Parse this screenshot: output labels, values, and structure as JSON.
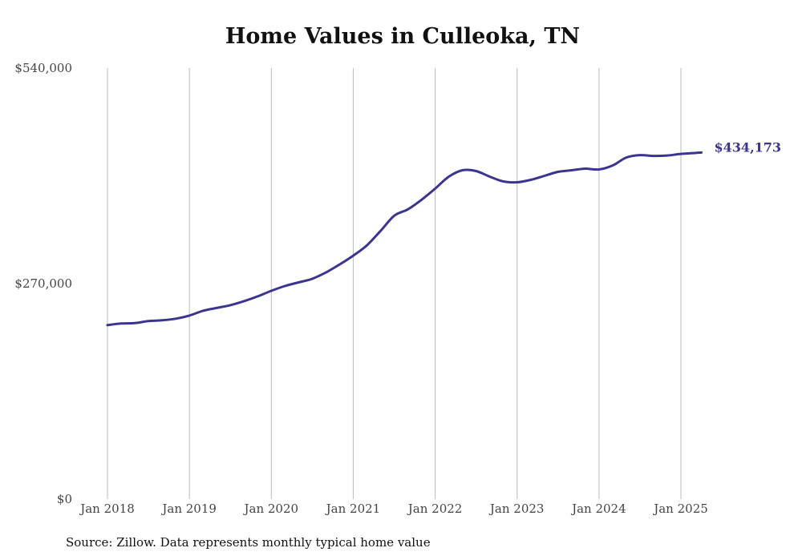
{
  "title": "Home Values in Culleoka, TN",
  "source": "Source: Zillow. Data represents monthly typical home value",
  "colors": {
    "line": "#3b3590",
    "grid": "#bbbbbb",
    "text": "#444444"
  },
  "chart_data": {
    "type": "line",
    "title": "Home Values in Culleoka, TN",
    "xlabel": "",
    "ylabel": "",
    "ylim": [
      0,
      540000
    ],
    "yticks": [
      {
        "value": 0,
        "label": "$0"
      },
      {
        "value": 270000,
        "label": "$270,000"
      },
      {
        "value": 540000,
        "label": "$540,000"
      }
    ],
    "xlim": [
      "2018-01",
      "2025-04"
    ],
    "xticks": [
      {
        "date": "2018-01",
        "label": "Jan 2018"
      },
      {
        "date": "2019-01",
        "label": "Jan 2019"
      },
      {
        "date": "2020-01",
        "label": "Jan 2020"
      },
      {
        "date": "2021-01",
        "label": "Jan 2021"
      },
      {
        "date": "2022-01",
        "label": "Jan 2022"
      },
      {
        "date": "2023-01",
        "label": "Jan 2023"
      },
      {
        "date": "2024-01",
        "label": "Jan 2024"
      },
      {
        "date": "2025-01",
        "label": "Jan 2025"
      }
    ],
    "grid": "vertical",
    "legend": "none",
    "end_label": "$434,173",
    "series": [
      {
        "points": [
          [
            "2018-01",
            218000
          ],
          [
            "2018-03",
            220000
          ],
          [
            "2018-05",
            220500
          ],
          [
            "2018-07",
            223000
          ],
          [
            "2018-09",
            224000
          ],
          [
            "2018-11",
            226000
          ],
          [
            "2019-01",
            230000
          ],
          [
            "2019-03",
            236000
          ],
          [
            "2019-05",
            239500
          ],
          [
            "2019-07",
            243000
          ],
          [
            "2019-09",
            248000
          ],
          [
            "2019-11",
            254000
          ],
          [
            "2020-01",
            261000
          ],
          [
            "2020-03",
            267000
          ],
          [
            "2020-05",
            271500
          ],
          [
            "2020-07",
            276000
          ],
          [
            "2020-09",
            284000
          ],
          [
            "2020-11",
            294000
          ],
          [
            "2021-01",
            305000
          ],
          [
            "2021-03",
            318000
          ],
          [
            "2021-05",
            336000
          ],
          [
            "2021-07",
            355000
          ],
          [
            "2021-09",
            363000
          ],
          [
            "2021-11",
            375000
          ],
          [
            "2022-01",
            389000
          ],
          [
            "2022-03",
            404000
          ],
          [
            "2022-05",
            412000
          ],
          [
            "2022-07",
            411000
          ],
          [
            "2022-09",
            404000
          ],
          [
            "2022-11",
            398000
          ],
          [
            "2023-01",
            397000
          ],
          [
            "2023-03",
            400000
          ],
          [
            "2023-05",
            405000
          ],
          [
            "2023-07",
            410000
          ],
          [
            "2023-09",
            412000
          ],
          [
            "2023-11",
            414000
          ],
          [
            "2024-01",
            413000
          ],
          [
            "2024-03",
            418000
          ],
          [
            "2024-05",
            428000
          ],
          [
            "2024-07",
            431000
          ],
          [
            "2024-09",
            430000
          ],
          [
            "2024-11",
            430500
          ],
          [
            "2025-01",
            432500
          ],
          [
            "2025-04",
            434173
          ]
        ]
      }
    ]
  }
}
